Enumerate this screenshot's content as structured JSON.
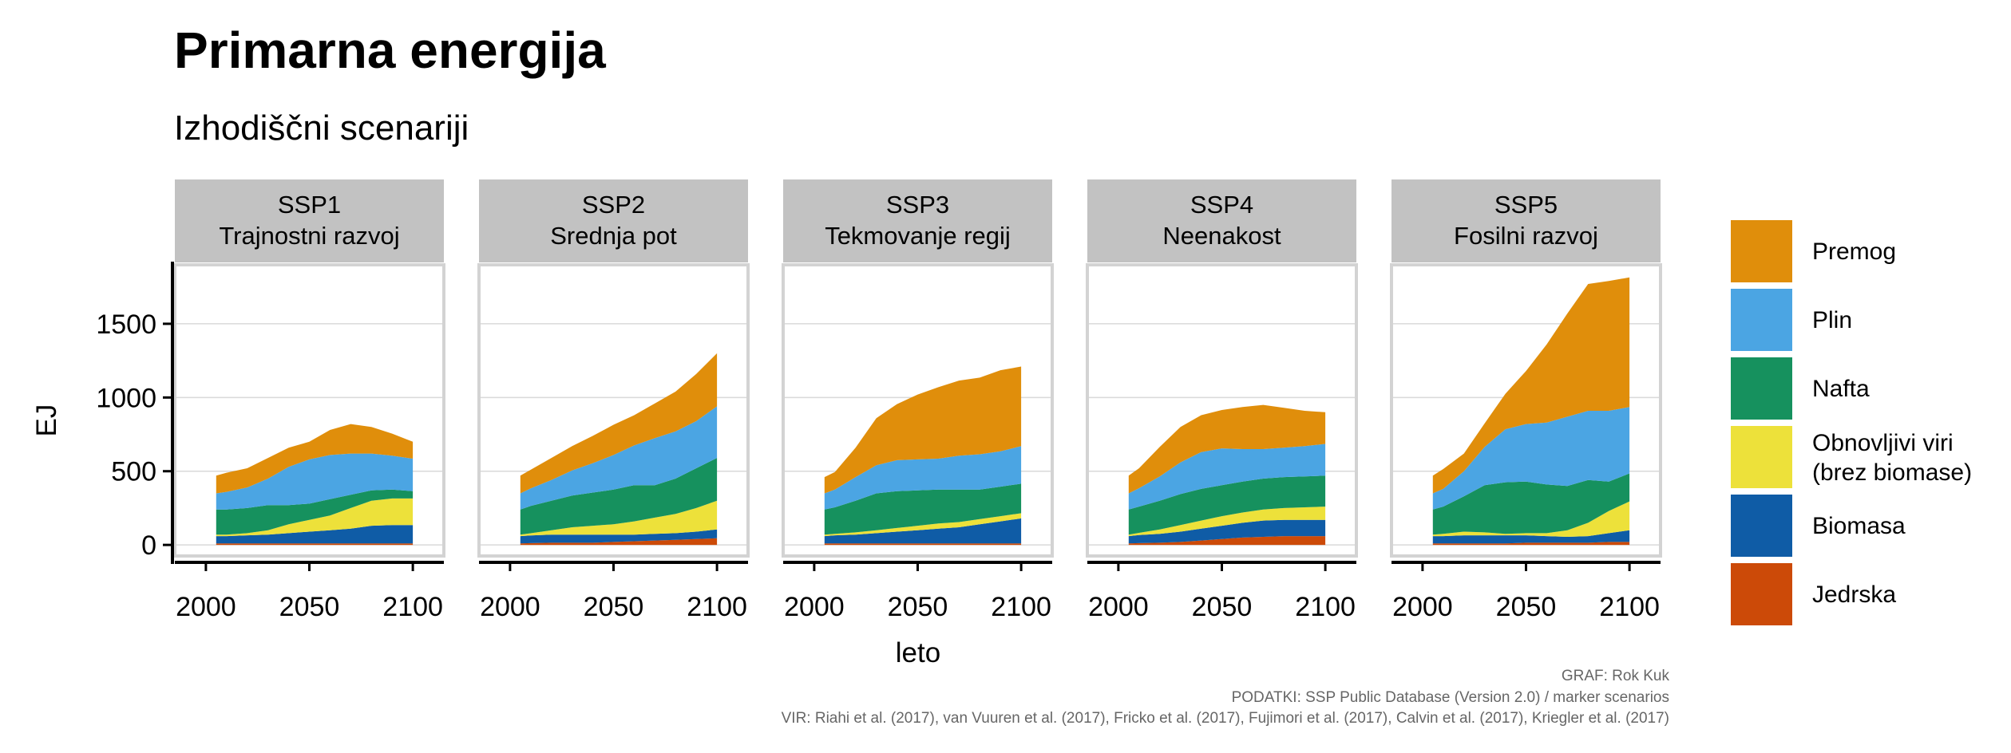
{
  "chart_data": {
    "type": "area",
    "stacked": true,
    "title": "Primarna energija",
    "subtitle": "Izhodiščni scenariji",
    "xlabel": "leto",
    "ylabel": "EJ",
    "xlim": [
      1985,
      2115
    ],
    "ylim": [
      -75,
      1900
    ],
    "xticks": [
      2000,
      2050,
      2100
    ],
    "yticks": [
      0,
      500,
      1000,
      1500
    ],
    "grid": true,
    "legend_position": "right",
    "years": [
      2005,
      2010,
      2020,
      2030,
      2040,
      2050,
      2060,
      2070,
      2080,
      2090,
      2100
    ],
    "series_order": [
      "Jedrska",
      "Biomasa",
      "Obnovljivi viri\n(brez biomase)",
      "Nafta",
      "Plin",
      "Premog"
    ],
    "colors": {
      "Premog": "#E08E0B",
      "Plin": "#4BA5E3",
      "Nafta": "#16915E",
      "Obnovljivi viri\n(brez biomase)": "#EDE13A",
      "Biomasa": "#0F5CA6",
      "Jedrska": "#CC4A08"
    },
    "panels": [
      {
        "strip": [
          "SSP1",
          "Trajnostni razvoj"
        ],
        "series": [
          {
            "name": "Jedrska",
            "values": [
              10,
              10,
              10,
              10,
              10,
              10,
              10,
              10,
              10,
              10,
              10
            ]
          },
          {
            "name": "Biomasa",
            "values": [
              50,
              50,
              55,
              60,
              70,
              80,
              90,
              100,
              120,
              125,
              125
            ]
          },
          {
            "name": "Obnovljivi viri\n(brez biomase)",
            "values": [
              10,
              10,
              15,
              30,
              60,
              80,
              100,
              140,
              170,
              180,
              180
            ]
          },
          {
            "name": "Nafta",
            "values": [
              170,
              170,
              170,
              170,
              130,
              110,
              110,
              90,
              70,
              60,
              50
            ]
          },
          {
            "name": "Plin",
            "values": [
              110,
              120,
              140,
              180,
              260,
              300,
              300,
              280,
              250,
              230,
              220
            ]
          },
          {
            "name": "Premog",
            "values": [
              120,
              130,
              130,
              140,
              130,
              120,
              170,
              200,
              180,
              150,
              115
            ]
          }
        ]
      },
      {
        "strip": [
          "SSP2",
          "Srednja pot"
        ],
        "series": [
          {
            "name": "Jedrska",
            "values": [
              10,
              12,
              15,
              15,
              15,
              20,
              25,
              30,
              35,
              40,
              45
            ]
          },
          {
            "name": "Biomasa",
            "values": [
              50,
              52,
              55,
              55,
              55,
              50,
              45,
              45,
              45,
              50,
              60
            ]
          },
          {
            "name": "Obnovljivi viri\n(brez biomase)",
            "values": [
              10,
              15,
              30,
              50,
              60,
              70,
              90,
              110,
              130,
              160,
              195
            ]
          },
          {
            "name": "Nafta",
            "values": [
              170,
              185,
              200,
              215,
              225,
              235,
              245,
              220,
              240,
              270,
              290
            ]
          },
          {
            "name": "Plin",
            "values": [
              110,
              120,
              140,
              170,
              200,
              235,
              270,
              320,
              320,
              320,
              350
            ]
          },
          {
            "name": "Premog",
            "values": [
              120,
              126,
              150,
              165,
              185,
              205,
              205,
              235,
              270,
              320,
              360
            ]
          }
        ]
      },
      {
        "strip": [
          "SSP3",
          "Tekmovanje regij"
        ],
        "series": [
          {
            "name": "Jedrska",
            "values": [
              10,
              10,
              10,
              10,
              10,
              10,
              10,
              10,
              10,
              10,
              10
            ]
          },
          {
            "name": "Biomasa",
            "values": [
              50,
              55,
              60,
              70,
              80,
              90,
              100,
              110,
              130,
              150,
              170
            ]
          },
          {
            "name": "Obnovljivi viri\n(brez biomase)",
            "values": [
              10,
              10,
              15,
              20,
              25,
              30,
              35,
              35,
              35,
              35,
              35
            ]
          },
          {
            "name": "Nafta",
            "values": [
              170,
              180,
              215,
              250,
              250,
              240,
              230,
              220,
              200,
              200,
              200
            ]
          },
          {
            "name": "Plin",
            "values": [
              110,
              120,
              160,
              190,
              210,
              210,
              210,
              230,
              240,
              240,
              255
            ]
          },
          {
            "name": "Premog",
            "values": [
              110,
              120,
              200,
              320,
              380,
              440,
              485,
              510,
              520,
              550,
              540
            ]
          }
        ]
      },
      {
        "strip": [
          "SSP4",
          "Neenakost"
        ],
        "series": [
          {
            "name": "Jedrska",
            "values": [
              10,
              12,
              15,
              20,
              30,
              40,
              50,
              55,
              60,
              60,
              60
            ]
          },
          {
            "name": "Biomasa",
            "values": [
              50,
              55,
              60,
              70,
              80,
              90,
              100,
              110,
              110,
              110,
              110
            ]
          },
          {
            "name": "Obnovljivi viri\n(brez biomase)",
            "values": [
              10,
              15,
              30,
              45,
              55,
              65,
              70,
              75,
              80,
              85,
              90
            ]
          },
          {
            "name": "Nafta",
            "values": [
              170,
              178,
              195,
              210,
              215,
              210,
              210,
              210,
              210,
              210,
              210
            ]
          },
          {
            "name": "Plin",
            "values": [
              110,
              125,
              165,
              215,
              250,
              250,
              220,
              200,
              200,
              205,
              215
            ]
          },
          {
            "name": "Premog",
            "values": [
              120,
              135,
              200,
              240,
              250,
              260,
              285,
              300,
              270,
              240,
              215
            ]
          }
        ]
      },
      {
        "strip": [
          "SSP5",
          "Fosilni razvoj"
        ],
        "series": [
          {
            "name": "Jedrska",
            "values": [
              10,
              10,
              10,
              10,
              10,
              15,
              15,
              15,
              15,
              20,
              20
            ]
          },
          {
            "name": "Biomasa",
            "values": [
              50,
              50,
              55,
              55,
              55,
              50,
              45,
              40,
              45,
              60,
              80
            ]
          },
          {
            "name": "Obnovljivi viri\n(brez biomase)",
            "values": [
              10,
              15,
              25,
              20,
              10,
              15,
              20,
              45,
              90,
              150,
              195
            ]
          },
          {
            "name": "Nafta",
            "values": [
              170,
              185,
              240,
              320,
              350,
              350,
              330,
              300,
              290,
              200,
              190
            ]
          },
          {
            "name": "Plin",
            "values": [
              110,
              120,
              170,
              260,
              360,
              390,
              420,
              470,
              470,
              480,
              450
            ]
          },
          {
            "name": "Premog",
            "values": [
              120,
              135,
              120,
              160,
              240,
              360,
              530,
              700,
              860,
              880,
              880
            ]
          }
        ]
      }
    ],
    "caption": [
      "GRAF: Rok Kuk",
      "PODATKI: SSP Public Database (Version 2.0) / marker scenarios",
      "VIR: Riahi et al. (2017), van Vuuren et al. (2017), Fricko et al. (2017), Fujimori et al. (2017), Calvin et al. (2017), Kriegler et al. (2017)"
    ]
  }
}
